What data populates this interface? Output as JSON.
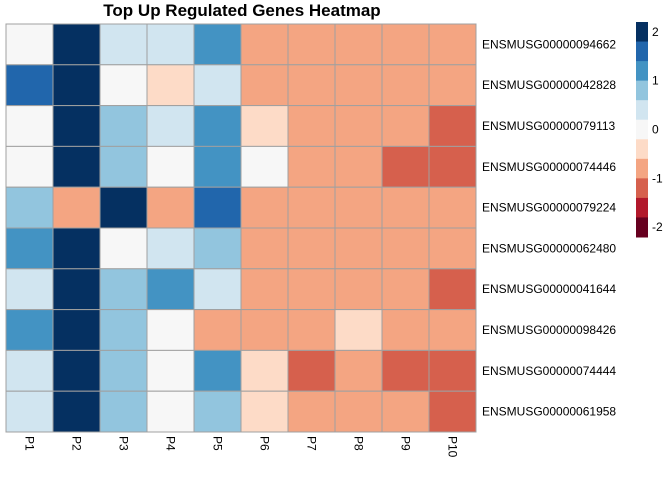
{
  "chart_data": {
    "type": "heatmap",
    "title": "Top Up Regulated Genes Heatmap",
    "columns": [
      "P1",
      "P2",
      "P3",
      "P4",
      "P5",
      "P6",
      "P7",
      "P8",
      "P9",
      "P10"
    ],
    "rows": [
      "ENSMUSG00000094662",
      "ENSMUSG00000042828",
      "ENSMUSG00000079113",
      "ENSMUSG00000074446",
      "ENSMUSG00000079224",
      "ENSMUSG00000062480",
      "ENSMUSG00000041644",
      "ENSMUSG00000098426",
      "ENSMUSG00000074444",
      "ENSMUSG00000061958"
    ],
    "values": [
      [
        0.0,
        2.1,
        0.4,
        0.4,
        1.2,
        -0.8,
        -0.8,
        -0.8,
        -0.8,
        -0.8
      ],
      [
        1.6,
        2.1,
        0.0,
        -0.4,
        0.4,
        -0.8,
        -0.8,
        -0.8,
        -0.8,
        -0.8
      ],
      [
        0.0,
        2.1,
        0.8,
        0.4,
        1.2,
        -0.4,
        -0.8,
        -0.8,
        -0.8,
        -1.2
      ],
      [
        0.0,
        2.1,
        0.8,
        0.0,
        1.2,
        0.0,
        -0.8,
        -0.8,
        -1.2,
        -1.2
      ],
      [
        0.8,
        -0.8,
        2.1,
        -0.8,
        1.6,
        -0.8,
        -0.8,
        -0.8,
        -0.8,
        -0.8
      ],
      [
        1.2,
        2.1,
        0.0,
        0.4,
        0.8,
        -0.8,
        -0.8,
        -0.8,
        -0.8,
        -0.8
      ],
      [
        0.4,
        2.1,
        0.8,
        1.2,
        0.4,
        -0.8,
        -0.8,
        -0.8,
        -0.8,
        -1.2
      ],
      [
        1.2,
        2.1,
        0.8,
        0.0,
        -0.8,
        -0.8,
        -0.8,
        -0.4,
        -0.8,
        -0.8
      ],
      [
        0.4,
        2.1,
        0.8,
        0.0,
        1.2,
        -0.4,
        -1.2,
        -0.8,
        -1.2,
        -1.2
      ],
      [
        0.4,
        2.1,
        0.8,
        0.0,
        0.8,
        -0.4,
        -0.8,
        -0.8,
        -0.8,
        -1.2
      ]
    ],
    "legend": {
      "ticks": [
        2,
        1,
        0,
        -1,
        -2
      ],
      "range": [
        2.2,
        -2.2
      ],
      "colors": [
        "#053061",
        "#2166ac",
        "#4393c3",
        "#92c5de",
        "#d1e5f0",
        "#f7f7f7",
        "#fddbc7",
        "#f4a582",
        "#d6604d",
        "#b2182b",
        "#67001f"
      ]
    },
    "grid_color": "#a0a0a0"
  }
}
